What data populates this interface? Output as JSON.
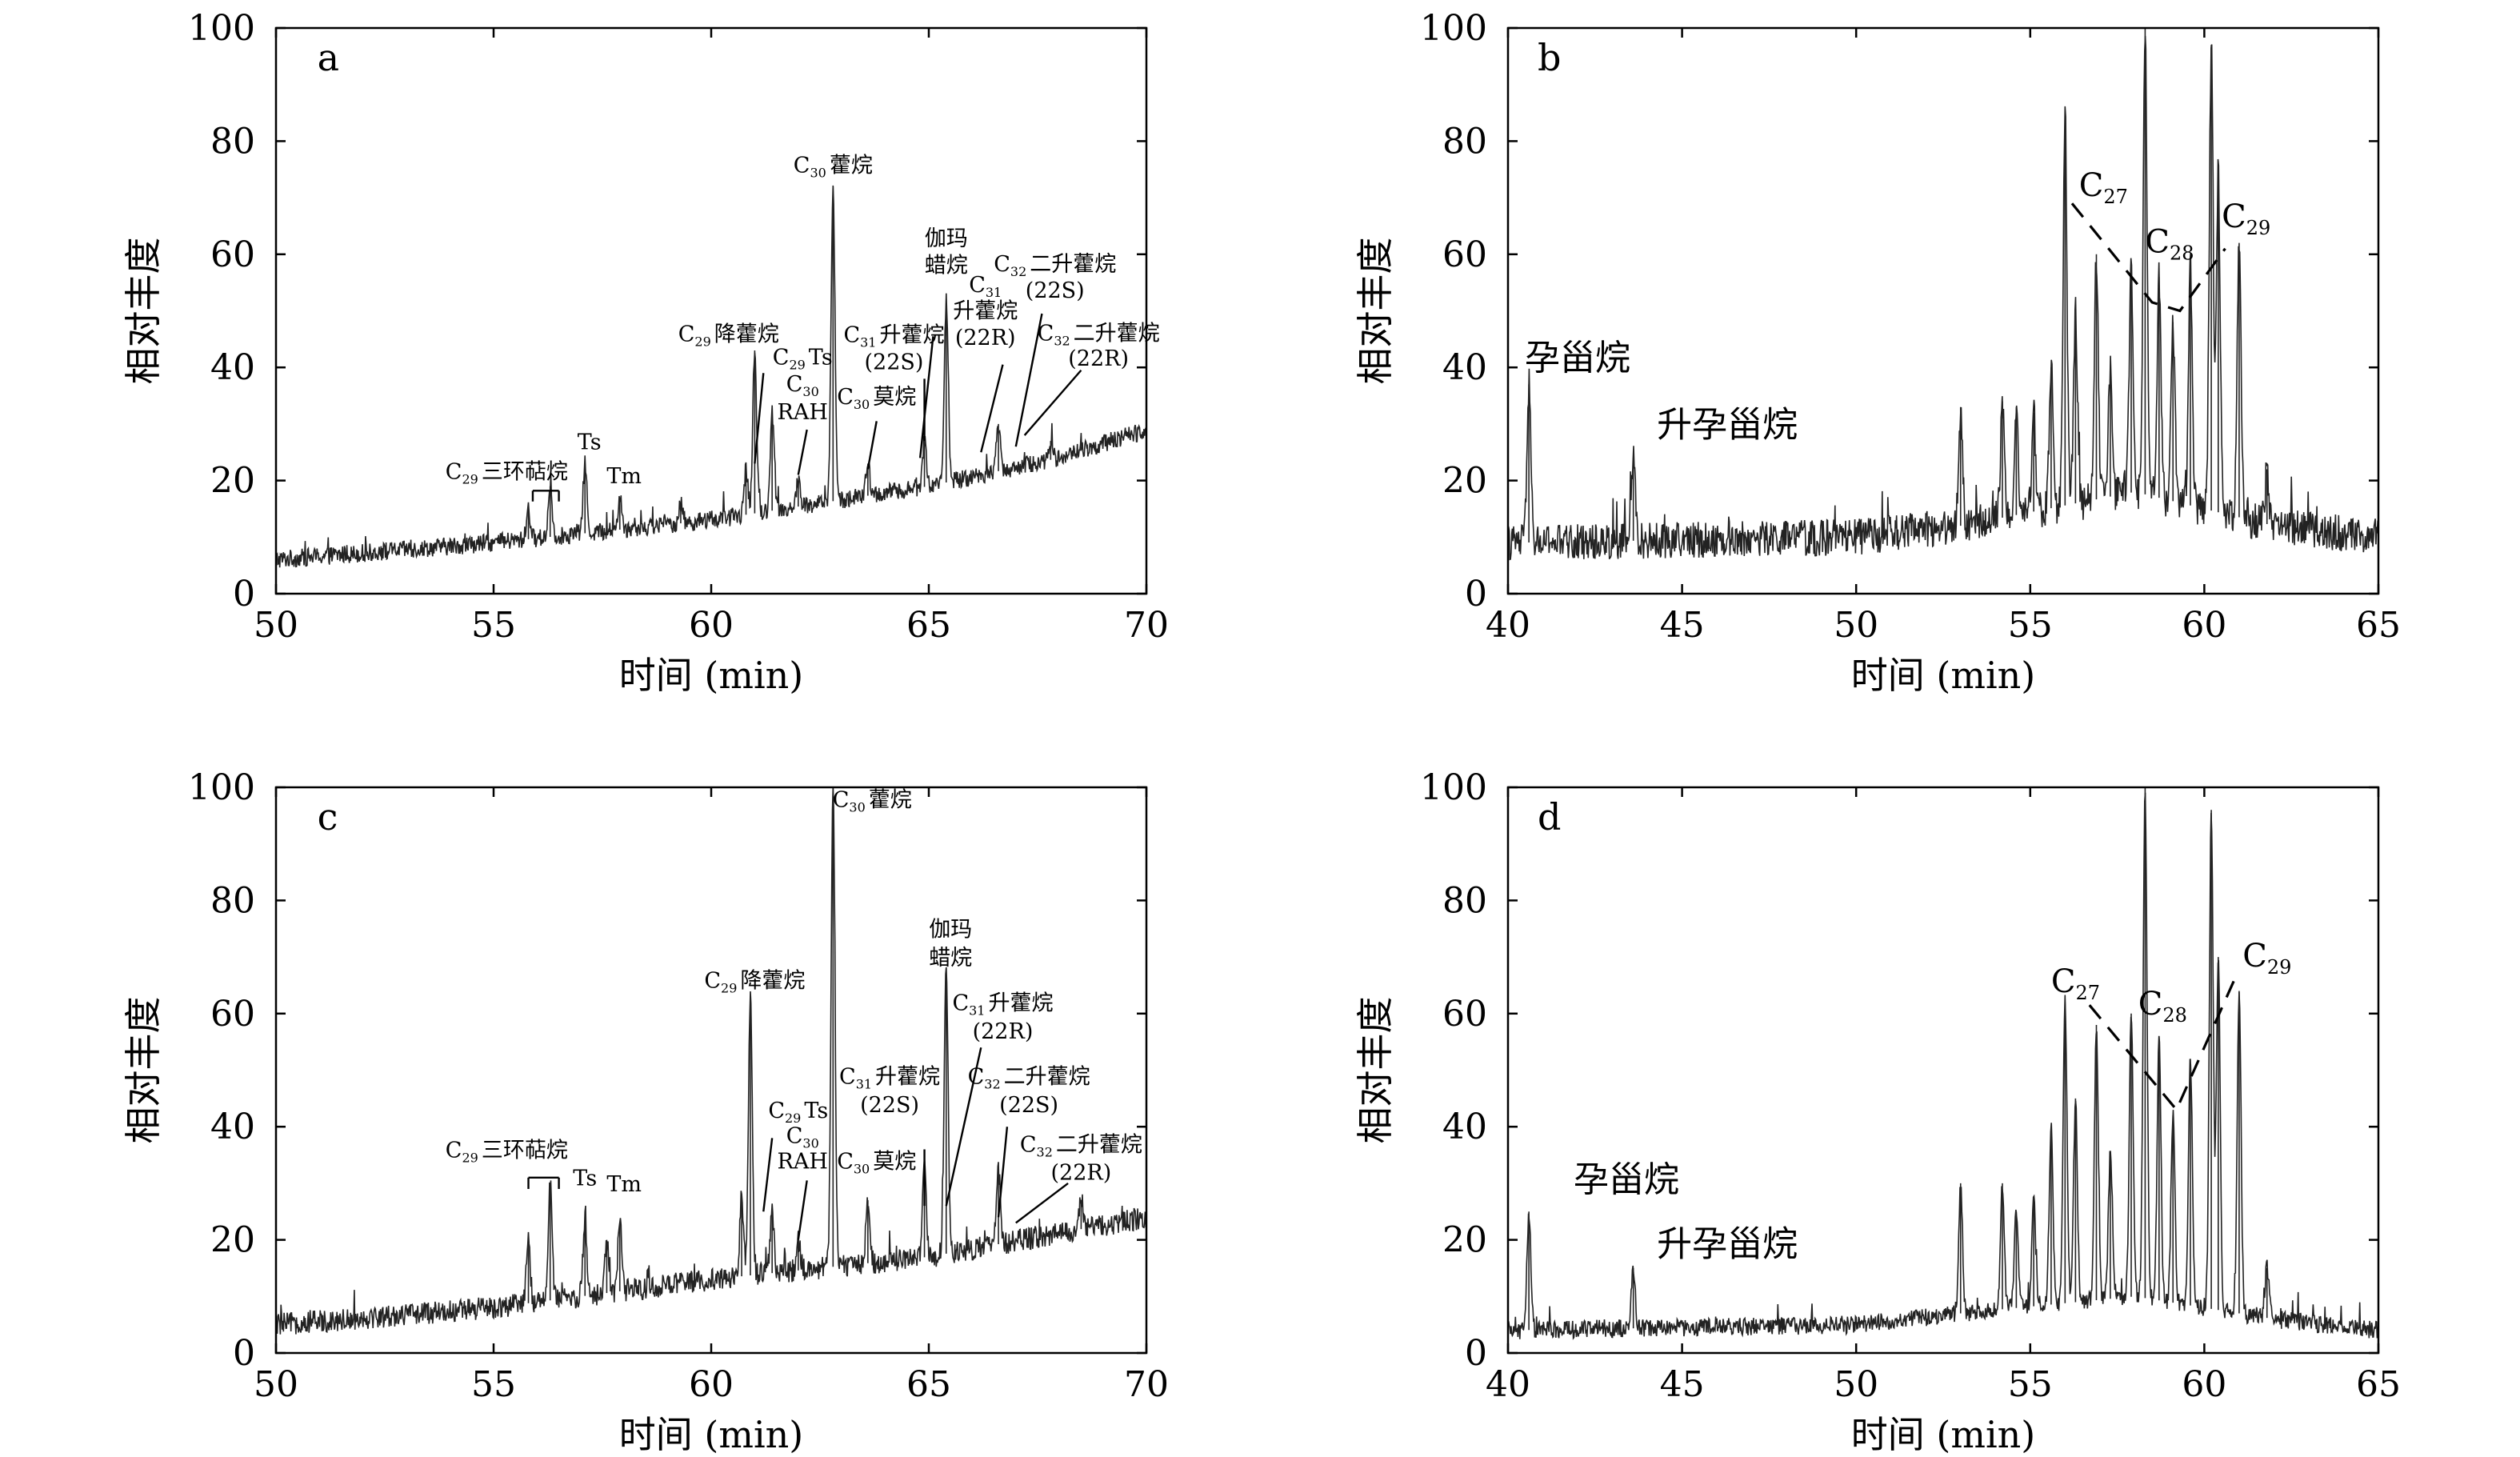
{
  "chart_data": [
    {
      "panel": "a",
      "type": "line",
      "xlabel": "时间 (min)",
      "ylabel": "相对丰度",
      "xlim": [
        50,
        70
      ],
      "ylim": [
        0,
        100
      ],
      "xticks": [
        50,
        55,
        60,
        65,
        70
      ],
      "yticks": [
        0,
        20,
        40,
        60,
        80,
        100
      ],
      "baseline": [
        [
          50,
          6
        ],
        [
          55,
          9
        ],
        [
          60,
          13
        ],
        [
          65,
          19
        ],
        [
          68,
          24
        ],
        [
          70,
          29
        ]
      ],
      "noise": 1.6,
      "peaks": [
        {
          "x": 55.8,
          "y": 15
        },
        {
          "x": 56.3,
          "y": 19
        },
        {
          "x": 57.1,
          "y": 23
        },
        {
          "x": 57.9,
          "y": 17
        },
        {
          "x": 59.3,
          "y": 16
        },
        {
          "x": 60.8,
          "y": 22
        },
        {
          "x": 61.0,
          "y": 43
        },
        {
          "x": 61.4,
          "y": 32
        },
        {
          "x": 62.0,
          "y": 20
        },
        {
          "x": 62.8,
          "y": 72
        },
        {
          "x": 63.6,
          "y": 23
        },
        {
          "x": 64.9,
          "y": 27
        },
        {
          "x": 65.4,
          "y": 52
        },
        {
          "x": 66.6,
          "y": 30
        },
        {
          "x": 67.8,
          "y": 27
        },
        {
          "x": 68.5,
          "y": 26
        }
      ],
      "annotations": [
        {
          "id": "tricyclic",
          "text": "三环萜烷",
          "sub": "29"
        },
        {
          "id": "ts",
          "text": "Ts"
        },
        {
          "id": "tm",
          "text": "Tm"
        },
        {
          "id": "norhopane",
          "text": "降藿烷",
          "sub": "29"
        },
        {
          "id": "c29ts",
          "text": "Ts",
          "sub": "29"
        },
        {
          "id": "c30",
          "text": "",
          "sub": "30"
        },
        {
          "id": "rah",
          "text": "RAH"
        },
        {
          "id": "hopane",
          "text": "藿烷",
          "sub": "30"
        },
        {
          "id": "moretane",
          "text": "莫烷",
          "sub": "30"
        },
        {
          "id": "gamma1",
          "text": "伽玛"
        },
        {
          "id": "gamma2",
          "text": "蜡烷"
        },
        {
          "id": "c31s_1",
          "text": "升藿烷",
          "sub": "31"
        },
        {
          "id": "c31s_2",
          "text": "(22S)"
        },
        {
          "id": "c31r_0",
          "text": "",
          "sub": "31"
        },
        {
          "id": "c31r_1",
          "text": "升藿烷"
        },
        {
          "id": "c31r_2",
          "text": "(22R)"
        },
        {
          "id": "c32s_1",
          "text": "二升藿烷",
          "sub": "32"
        },
        {
          "id": "c32s_2",
          "text": "(22S)"
        },
        {
          "id": "c32r_1",
          "text": "二升藿烷",
          "sub": "32"
        },
        {
          "id": "c32r_2",
          "text": "(22R)"
        }
      ]
    },
    {
      "panel": "b",
      "type": "line",
      "xlabel": "时间 (min)",
      "ylabel": "相对丰度",
      "xlim": [
        40,
        65
      ],
      "ylim": [
        0,
        100
      ],
      "xticks": [
        40,
        45,
        50,
        55,
        60,
        65
      ],
      "yticks": [
        0,
        20,
        40,
        60,
        80,
        100
      ],
      "baseline": [
        [
          40,
          9
        ],
        [
          50,
          10
        ],
        [
          53,
          12
        ],
        [
          58,
          18
        ],
        [
          62,
          12
        ],
        [
          65,
          10
        ]
      ],
      "noise": 3.2,
      "peaks": [
        {
          "x": 40.6,
          "y": 37
        },
        {
          "x": 43.6,
          "y": 24
        },
        {
          "x": 53.0,
          "y": 33
        },
        {
          "x": 54.2,
          "y": 34
        },
        {
          "x": 54.6,
          "y": 33
        },
        {
          "x": 55.1,
          "y": 32
        },
        {
          "x": 55.6,
          "y": 40
        },
        {
          "x": 56.0,
          "y": 84
        },
        {
          "x": 56.3,
          "y": 50
        },
        {
          "x": 56.9,
          "y": 60
        },
        {
          "x": 57.3,
          "y": 40
        },
        {
          "x": 57.9,
          "y": 58
        },
        {
          "x": 58.3,
          "y": 100
        },
        {
          "x": 58.7,
          "y": 56
        },
        {
          "x": 59.1,
          "y": 48
        },
        {
          "x": 59.6,
          "y": 58
        },
        {
          "x": 60.2,
          "y": 97
        },
        {
          "x": 60.4,
          "y": 74
        },
        {
          "x": 61.0,
          "y": 62
        },
        {
          "x": 61.8,
          "y": 22
        }
      ],
      "annotations": [
        {
          "id": "c27",
          "text": "C",
          "sub": "27"
        },
        {
          "id": "c28",
          "text": "C",
          "sub": "28"
        },
        {
          "id": "c29",
          "text": "C",
          "sub": "29"
        },
        {
          "id": "pregnane",
          "text": "孕甾烷"
        },
        {
          "id": "homopregnane",
          "text": "升孕甾烷"
        }
      ]
    },
    {
      "panel": "c",
      "type": "line",
      "xlabel": "时间 (min)",
      "ylabel": "相对丰度",
      "xlim": [
        50,
        70
      ],
      "ylim": [
        0,
        100
      ],
      "xticks": [
        50,
        55,
        60,
        65,
        70
      ],
      "yticks": [
        0,
        20,
        40,
        60,
        80,
        100
      ],
      "baseline": [
        [
          50,
          5
        ],
        [
          55,
          8
        ],
        [
          60,
          13
        ],
        [
          65,
          17
        ],
        [
          70,
          24
        ]
      ],
      "noise": 2.0,
      "peaks": [
        {
          "x": 55.8,
          "y": 20
        },
        {
          "x": 56.3,
          "y": 30
        },
        {
          "x": 57.1,
          "y": 23
        },
        {
          "x": 57.6,
          "y": 20
        },
        {
          "x": 57.9,
          "y": 23
        },
        {
          "x": 60.7,
          "y": 28
        },
        {
          "x": 60.9,
          "y": 63
        },
        {
          "x": 61.4,
          "y": 25
        },
        {
          "x": 62.0,
          "y": 20
        },
        {
          "x": 62.8,
          "y": 100
        },
        {
          "x": 63.6,
          "y": 27
        },
        {
          "x": 64.9,
          "y": 33
        },
        {
          "x": 65.4,
          "y": 68
        },
        {
          "x": 66.6,
          "y": 32
        },
        {
          "x": 68.5,
          "y": 27
        }
      ],
      "annotations": [
        {
          "id": "tricyclic",
          "text": "三环萜烷",
          "sub": "29"
        },
        {
          "id": "ts",
          "text": "Ts"
        },
        {
          "id": "tm",
          "text": "Tm"
        },
        {
          "id": "norhopane",
          "text": "降藿烷",
          "sub": "29"
        },
        {
          "id": "c29ts",
          "text": "Ts",
          "sub": "29"
        },
        {
          "id": "c30",
          "text": "",
          "sub": "30"
        },
        {
          "id": "rah",
          "text": "RAH"
        },
        {
          "id": "hopane",
          "text": "藿烷",
          "sub": "30"
        },
        {
          "id": "moretane",
          "text": "莫烷",
          "sub": "30"
        },
        {
          "id": "gamma1",
          "text": "伽玛"
        },
        {
          "id": "gamma2",
          "text": "蜡烷"
        },
        {
          "id": "c31s_1",
          "text": "升藿烷",
          "sub": "31"
        },
        {
          "id": "c31s_2",
          "text": "(22S)"
        },
        {
          "id": "c31r_1",
          "text": "升藿烷",
          "sub": "31"
        },
        {
          "id": "c31r_2",
          "text": "(22R)"
        },
        {
          "id": "c32s_1",
          "text": "二升藿烷",
          "sub": "32"
        },
        {
          "id": "c32s_2",
          "text": "(22S)"
        },
        {
          "id": "c32r_1",
          "text": "二升藿烷",
          "sub": "32"
        },
        {
          "id": "c32r_2",
          "text": "(22R)"
        }
      ]
    },
    {
      "panel": "d",
      "type": "line",
      "xlabel": "时间 (min)",
      "ylabel": "相对丰度",
      "xlim": [
        40,
        65
      ],
      "ylim": [
        0,
        100
      ],
      "xticks": [
        40,
        45,
        50,
        55,
        60,
        65
      ],
      "yticks": [
        0,
        20,
        40,
        60,
        80,
        100
      ],
      "baseline": [
        [
          40,
          4
        ],
        [
          50,
          5
        ],
        [
          53,
          7
        ],
        [
          58,
          10
        ],
        [
          62,
          6
        ],
        [
          65,
          4
        ]
      ],
      "noise": 1.6,
      "peaks": [
        {
          "x": 40.6,
          "y": 25
        },
        {
          "x": 43.6,
          "y": 15
        },
        {
          "x": 53.0,
          "y": 30
        },
        {
          "x": 54.2,
          "y": 30
        },
        {
          "x": 54.6,
          "y": 25
        },
        {
          "x": 55.1,
          "y": 27
        },
        {
          "x": 55.6,
          "y": 40
        },
        {
          "x": 56.0,
          "y": 62
        },
        {
          "x": 56.3,
          "y": 45
        },
        {
          "x": 56.9,
          "y": 58
        },
        {
          "x": 57.3,
          "y": 35
        },
        {
          "x": 57.9,
          "y": 60
        },
        {
          "x": 58.3,
          "y": 100
        },
        {
          "x": 58.7,
          "y": 56
        },
        {
          "x": 59.1,
          "y": 42
        },
        {
          "x": 59.6,
          "y": 52
        },
        {
          "x": 60.2,
          "y": 96
        },
        {
          "x": 60.4,
          "y": 70
        },
        {
          "x": 61.0,
          "y": 64
        },
        {
          "x": 61.8,
          "y": 15
        }
      ],
      "annotations": [
        {
          "id": "c27",
          "text": "C",
          "sub": "27"
        },
        {
          "id": "c28",
          "text": "C",
          "sub": "28"
        },
        {
          "id": "c29",
          "text": "C",
          "sub": "29"
        },
        {
          "id": "pregnane",
          "text": "孕甾烷"
        },
        {
          "id": "homopregnane",
          "text": "升孕甾烷"
        }
      ]
    }
  ]
}
